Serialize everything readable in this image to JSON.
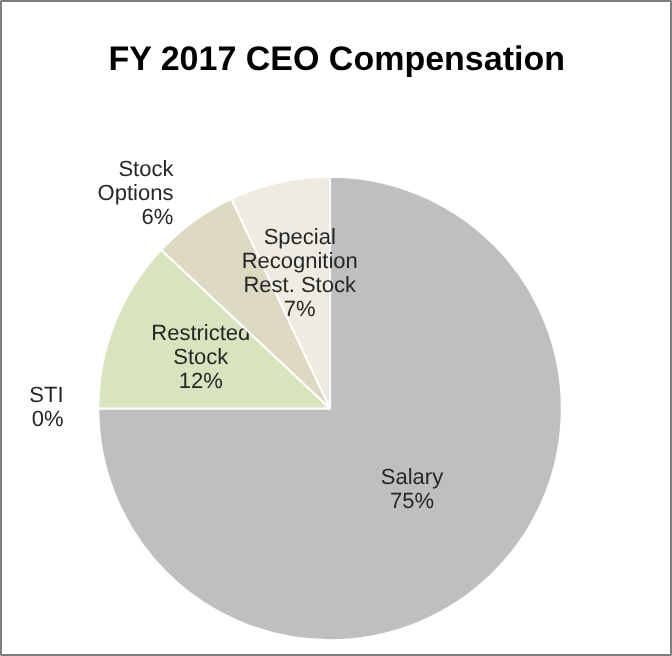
{
  "chart_data": {
    "type": "pie",
    "title": "FY 2017 CEO Compensation",
    "categories": [
      "Salary",
      "STI",
      "Restricted Stock",
      "Stock Options",
      "Special Recognition Rest. Stock"
    ],
    "values": [
      75,
      0,
      12,
      6,
      7
    ],
    "value_labels": [
      "75%",
      "0%",
      "12%",
      "6%",
      "7%"
    ],
    "colors": [
      "#bfbfbf",
      "#c3d69b",
      "#d7e4bd",
      "#ddd9c3",
      "#eeece1"
    ]
  }
}
